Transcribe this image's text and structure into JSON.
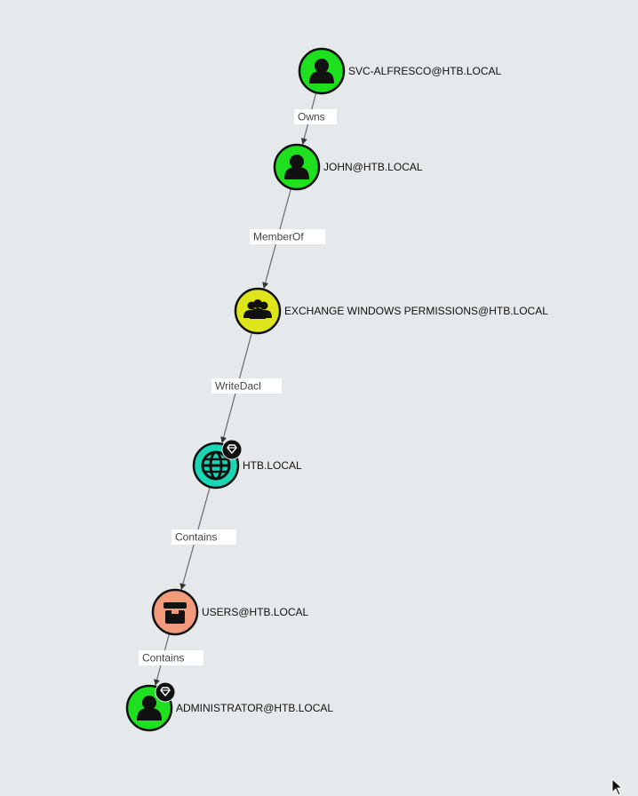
{
  "graph": {
    "nodes": [
      {
        "id": "svc",
        "label": "SVC-ALFRESCO@HTB.LOCAL",
        "type": "user",
        "icon": "user-icon",
        "fill": "#1fe01f",
        "highvalue": false
      },
      {
        "id": "john",
        "label": "JOHN@HTB.LOCAL",
        "type": "user",
        "icon": "user-icon",
        "fill": "#1fe01f",
        "highvalue": false
      },
      {
        "id": "ewp",
        "label": "EXCHANGE WINDOWS PERMISSIONS@HTB.LOCAL",
        "type": "group",
        "icon": "group-icon",
        "fill": "#dfe51b",
        "highvalue": false
      },
      {
        "id": "htb",
        "label": "HTB.LOCAL",
        "type": "domain",
        "icon": "globe-icon",
        "fill": "#19d6b4",
        "highvalue": true
      },
      {
        "id": "users",
        "label": "USERS@HTB.LOCAL",
        "type": "container",
        "icon": "box-icon",
        "fill": "#f19a7c",
        "highvalue": false
      },
      {
        "id": "admin",
        "label": "ADMINISTRATOR@HTB.LOCAL",
        "type": "user",
        "icon": "user-icon",
        "fill": "#1fe01f",
        "highvalue": true
      }
    ],
    "edges": [
      {
        "from": "svc",
        "to": "john",
        "label": "Owns"
      },
      {
        "from": "john",
        "to": "ewp",
        "label": "MemberOf"
      },
      {
        "from": "ewp",
        "to": "htb",
        "label": "WriteDacl"
      },
      {
        "from": "htb",
        "to": "users",
        "label": "Contains"
      },
      {
        "from": "users",
        "to": "admin",
        "label": "Contains"
      }
    ]
  },
  "colors": {
    "background": "#e5e9eb",
    "edge": "#6b6b6b",
    "node_border": "#111111",
    "badge": "#111111"
  }
}
